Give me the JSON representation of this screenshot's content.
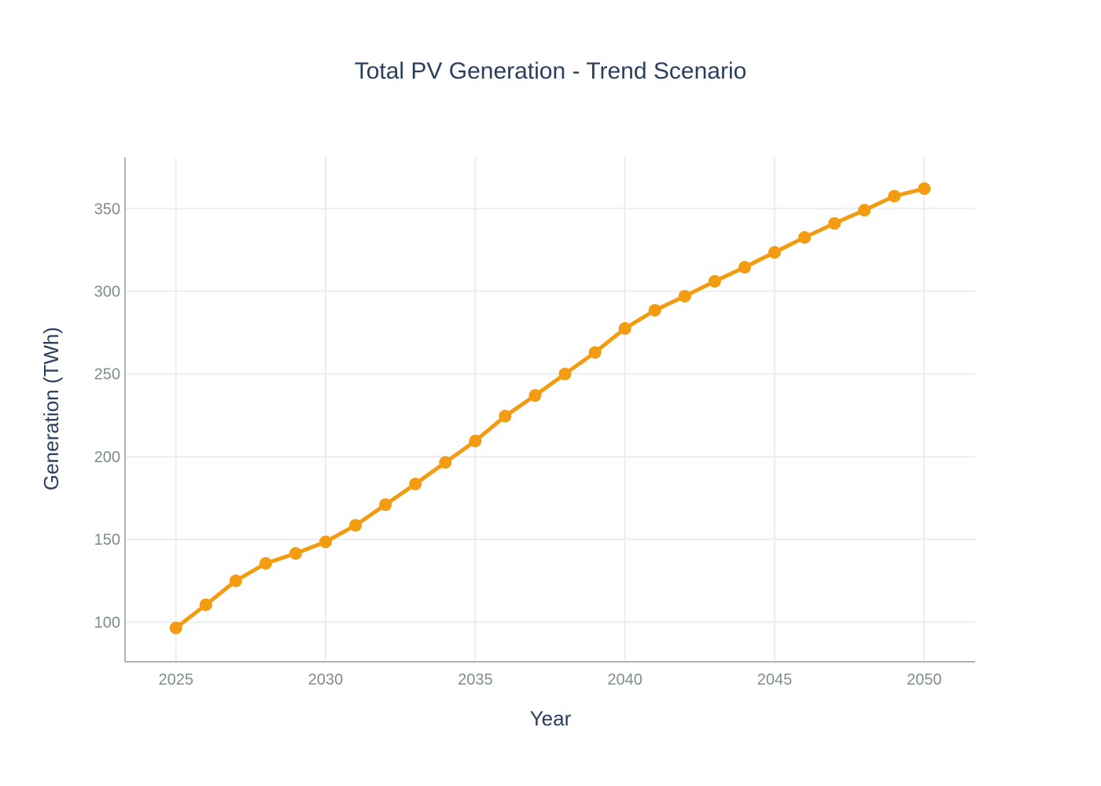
{
  "chart_data": {
    "type": "line",
    "title": "Total PV Generation - Trend Scenario",
    "xlabel": "Year",
    "ylabel": "Generation (TWh)",
    "xlim": [
      2023.3,
      2051.7
    ],
    "ylim": [
      76,
      381
    ],
    "x_ticks": [
      "2025",
      "2030",
      "2035",
      "2040",
      "2045",
      "2050"
    ],
    "y_ticks": [
      "100",
      "150",
      "200",
      "250",
      "300",
      "350"
    ],
    "grid": true,
    "series": [
      {
        "color": "#f39c12",
        "mode": "lines+markers",
        "x": [
          2025,
          2026,
          2027,
          2028,
          2029,
          2030,
          2031,
          2032,
          2033,
          2034,
          2035,
          2036,
          2037,
          2038,
          2039,
          2040,
          2041,
          2042,
          2043,
          2044,
          2045,
          2046,
          2047,
          2048,
          2049,
          2050
        ],
        "values": [
          96.5,
          110.5,
          125,
          135.5,
          141.5,
          148.5,
          158.5,
          171,
          183.5,
          196.5,
          209.5,
          224.5,
          237,
          250,
          263,
          277.5,
          288.5,
          297,
          306,
          314.5,
          323.5,
          332.5,
          341,
          349,
          357.5,
          362
        ]
      }
    ]
  }
}
